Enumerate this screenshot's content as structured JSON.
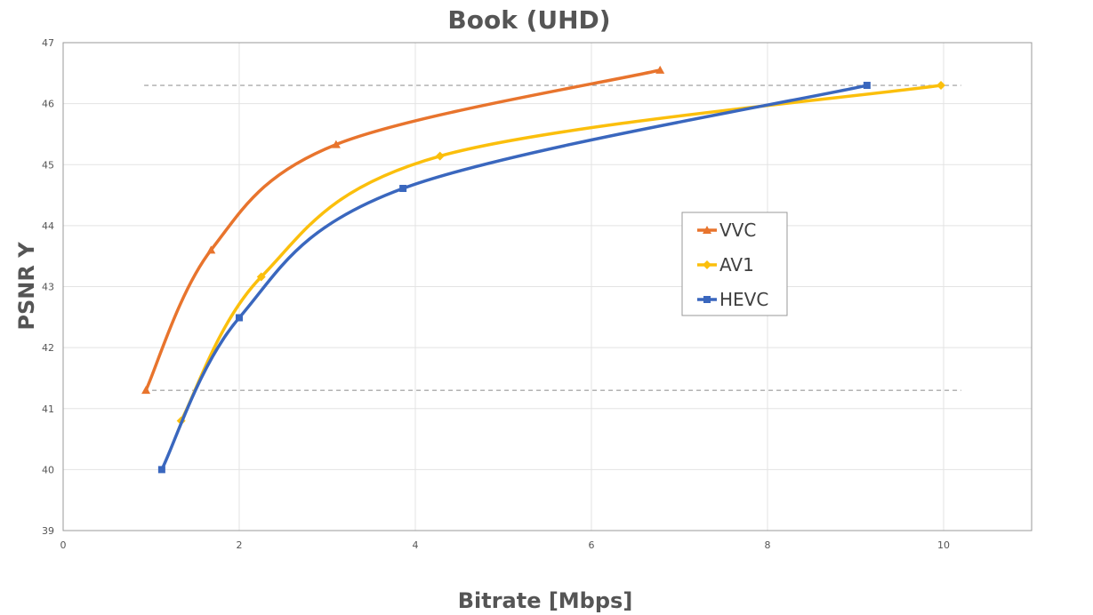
{
  "chart_data": {
    "type": "line",
    "title": "Book (UHD)",
    "xlabel": "Bitrate [Mbps]",
    "ylabel": "PSNR Y",
    "xlim": [
      0,
      11
    ],
    "ylim": [
      39,
      47
    ],
    "xticks": [
      "0",
      "2",
      "4",
      "6",
      "8",
      "10"
    ],
    "yticks": [
      "39",
      "40",
      "41",
      "42",
      "43",
      "44",
      "45",
      "46",
      "47"
    ],
    "grid": true,
    "legend_position": "center-right",
    "series": [
      {
        "name": "VVC",
        "color": "#E8742D",
        "marker": "triangle",
        "points": [
          [
            0.94,
            41.3
          ],
          [
            1.68,
            43.6
          ],
          [
            3.1,
            45.33
          ],
          [
            6.78,
            46.55
          ]
        ]
      },
      {
        "name": "AV1",
        "color": "#FBBF0C",
        "marker": "diamond",
        "points": [
          [
            1.34,
            40.8
          ],
          [
            2.25,
            43.16
          ],
          [
            4.28,
            45.14
          ],
          [
            9.97,
            46.3
          ]
        ]
      },
      {
        "name": "HEVC",
        "color": "#3A67BE",
        "marker": "square",
        "points": [
          [
            1.12,
            40.0
          ],
          [
            2.0,
            42.49
          ],
          [
            3.86,
            44.61
          ],
          [
            9.13,
            46.3
          ]
        ]
      }
    ],
    "reference_lines": [
      {
        "y": 46.3,
        "x_start": 0.92,
        "x_end": 10.2,
        "color": "#999999",
        "style": "dashed"
      },
      {
        "y": 41.3,
        "x_start": 0.92,
        "x_end": 10.2,
        "color": "#999999",
        "style": "dashed"
      }
    ]
  }
}
